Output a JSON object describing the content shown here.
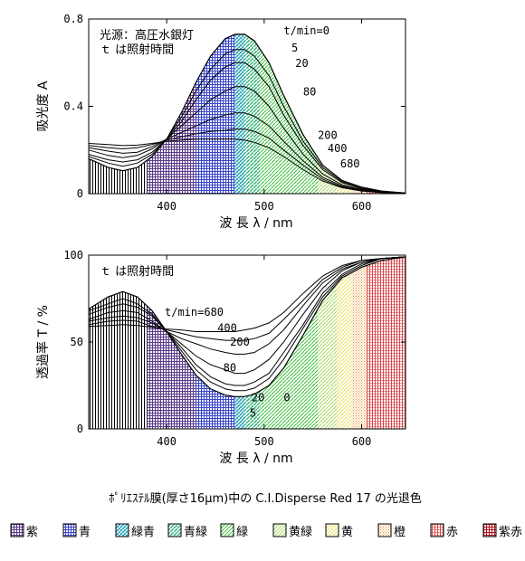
{
  "caption": "ﾎﾟﾘｴｽﾃﾙ膜(厚さ16μm)中の C.I.Disperse Red 17 の光退色",
  "legend": [
    {
      "label": "紫",
      "color": "#5a3a8a"
    },
    {
      "label": "青",
      "color": "#3a46c8"
    },
    {
      "label": "緑青",
      "color": "#3fb8b8"
    },
    {
      "label": "青緑",
      "color": "#48c890"
    },
    {
      "label": "緑",
      "color": "#60d060"
    },
    {
      "label": "黄緑",
      "color": "#c8e878"
    },
    {
      "label": "黄",
      "color": "#f0f070"
    },
    {
      "label": "橙",
      "color": "#f0a040"
    },
    {
      "label": "赤",
      "color": "#e05050"
    },
    {
      "label": "紫赤",
      "color": "#c01a30"
    }
  ],
  "chart_data": [
    {
      "type": "line",
      "ylabel": "吸光度 A",
      "xlabel": "波 長 λ / nm",
      "xlim": [
        320,
        645
      ],
      "ylim": [
        0,
        0.8
      ],
      "xticks": [
        400,
        500,
        600
      ],
      "yticks": [
        {
          "v": 0,
          "label": "0"
        },
        {
          "v": 0.4,
          "label": "0.4"
        },
        {
          "v": 0.8,
          "label": "0.8"
        }
      ],
      "annotation_lines": [
        "光源：高圧水銀灯",
        "ｔ は照射時間"
      ],
      "series_labels": [
        {
          "text": "t/min=0",
          "x": 520,
          "y": 0.73
        },
        {
          "text": "5",
          "x": 528,
          "y": 0.65
        },
        {
          "text": "20",
          "x": 532,
          "y": 0.58
        },
        {
          "text": "80",
          "x": 540,
          "y": 0.45
        },
        {
          "text": "200",
          "x": 555,
          "y": 0.25
        },
        {
          "text": "400",
          "x": 565,
          "y": 0.19
        },
        {
          "text": "680",
          "x": 578,
          "y": 0.12
        }
      ],
      "x": [
        320,
        340,
        355,
        370,
        385,
        400,
        415,
        430,
        445,
        460,
        470,
        480,
        490,
        505,
        520,
        540,
        560,
        580,
        600,
        620,
        645
      ],
      "series": [
        {
          "name": "0",
          "values": [
            0.16,
            0.12,
            0.105,
            0.12,
            0.17,
            0.25,
            0.37,
            0.51,
            0.63,
            0.71,
            0.73,
            0.73,
            0.7,
            0.6,
            0.45,
            0.27,
            0.13,
            0.06,
            0.03,
            0.012,
            0.003
          ]
        },
        {
          "name": "5",
          "values": [
            0.17,
            0.14,
            0.125,
            0.14,
            0.18,
            0.25,
            0.35,
            0.47,
            0.57,
            0.64,
            0.66,
            0.66,
            0.63,
            0.54,
            0.4,
            0.24,
            0.12,
            0.055,
            0.025,
            0.01,
            0.003
          ]
        },
        {
          "name": "20",
          "values": [
            0.18,
            0.155,
            0.145,
            0.155,
            0.19,
            0.25,
            0.33,
            0.43,
            0.52,
            0.58,
            0.6,
            0.6,
            0.57,
            0.49,
            0.36,
            0.22,
            0.11,
            0.05,
            0.022,
            0.009,
            0.003
          ]
        },
        {
          "name": "80",
          "values": [
            0.2,
            0.175,
            0.165,
            0.175,
            0.205,
            0.25,
            0.31,
            0.37,
            0.43,
            0.47,
            0.49,
            0.49,
            0.47,
            0.4,
            0.3,
            0.18,
            0.09,
            0.04,
            0.018,
            0.008,
            0.002
          ]
        },
        {
          "name": "200",
          "values": [
            0.21,
            0.195,
            0.185,
            0.19,
            0.215,
            0.25,
            0.28,
            0.31,
            0.34,
            0.36,
            0.37,
            0.37,
            0.355,
            0.31,
            0.24,
            0.15,
            0.075,
            0.035,
            0.016,
            0.007,
            0.002
          ]
        },
        {
          "name": "400",
          "values": [
            0.22,
            0.21,
            0.205,
            0.21,
            0.225,
            0.245,
            0.26,
            0.275,
            0.285,
            0.29,
            0.295,
            0.295,
            0.285,
            0.255,
            0.2,
            0.13,
            0.066,
            0.03,
            0.014,
            0.006,
            0.002
          ]
        },
        {
          "name": "680",
          "values": [
            0.23,
            0.225,
            0.22,
            0.222,
            0.23,
            0.24,
            0.245,
            0.25,
            0.25,
            0.25,
            0.25,
            0.245,
            0.235,
            0.21,
            0.17,
            0.11,
            0.058,
            0.027,
            0.012,
            0.005,
            0.001
          ]
        }
      ]
    },
    {
      "type": "line",
      "ylabel": "透過率 T / %",
      "xlabel": "波 長 λ / nm",
      "xlim": [
        320,
        645
      ],
      "ylim": [
        0,
        100
      ],
      "xticks": [
        400,
        500,
        600
      ],
      "yticks": [
        {
          "v": 0,
          "label": "0"
        },
        {
          "v": 50,
          "label": "50"
        },
        {
          "v": 100,
          "label": "100"
        }
      ],
      "annotation_lines": [
        "ｔ は照射時間"
      ],
      "series_labels": [
        {
          "text": "t/min=680",
          "x": 398,
          "y": 65
        },
        {
          "text": "400",
          "x": 452,
          "y": 56
        },
        {
          "text": "200",
          "x": 465,
          "y": 48
        },
        {
          "text": "80",
          "x": 458,
          "y": 33
        },
        {
          "text": "20",
          "x": 487,
          "y": 16
        },
        {
          "text": "0",
          "x": 520,
          "y": 16
        },
        {
          "text": "5",
          "x": 485,
          "y": 7
        }
      ],
      "x": [
        320,
        340,
        355,
        370,
        385,
        400,
        415,
        430,
        445,
        460,
        470,
        480,
        490,
        505,
        520,
        540,
        560,
        580,
        600,
        620,
        645
      ],
      "series": [
        {
          "name": "0",
          "values": [
            69,
            76,
            79,
            76,
            68,
            56,
            43,
            31,
            23,
            19.5,
            18.6,
            18.6,
            20,
            25,
            35,
            54,
            74,
            87,
            93,
            97,
            99
          ]
        },
        {
          "name": "5",
          "values": [
            68,
            72,
            75,
            72,
            66,
            56,
            45,
            34,
            27,
            23,
            22,
            22,
            23.5,
            29,
            40,
            58,
            76,
            88,
            94,
            98,
            99
          ]
        },
        {
          "name": "20",
          "values": [
            66,
            70,
            72,
            70,
            65,
            56,
            47,
            37,
            30,
            26,
            25,
            25,
            27,
            32,
            44,
            60,
            78,
            89,
            95,
            98,
            99
          ]
        },
        {
          "name": "80",
          "values": [
            63,
            67,
            68,
            67,
            62,
            56,
            49,
            42,
            37,
            34,
            32,
            32,
            34,
            40,
            50,
            66,
            81,
            91,
            96,
            98,
            99
          ]
        },
        {
          "name": "200",
          "values": [
            62,
            64,
            65,
            64,
            61,
            56,
            52,
            49,
            46,
            44,
            43,
            43,
            44,
            49,
            57,
            71,
            84,
            92,
            96,
            98,
            99
          ]
        },
        {
          "name": "400",
          "values": [
            60,
            62,
            62.5,
            62,
            59,
            57,
            55,
            53,
            52,
            51,
            51,
            51,
            52,
            55,
            63,
            74,
            86,
            93,
            97,
            98,
            99
          ]
        },
        {
          "name": "680",
          "values": [
            59,
            59.5,
            60,
            59.5,
            58.5,
            57.5,
            57,
            56,
            56,
            56,
            56,
            57,
            58,
            61,
            67,
            78,
            88,
            94,
            97,
            98,
            99
          ]
        }
      ]
    }
  ]
}
